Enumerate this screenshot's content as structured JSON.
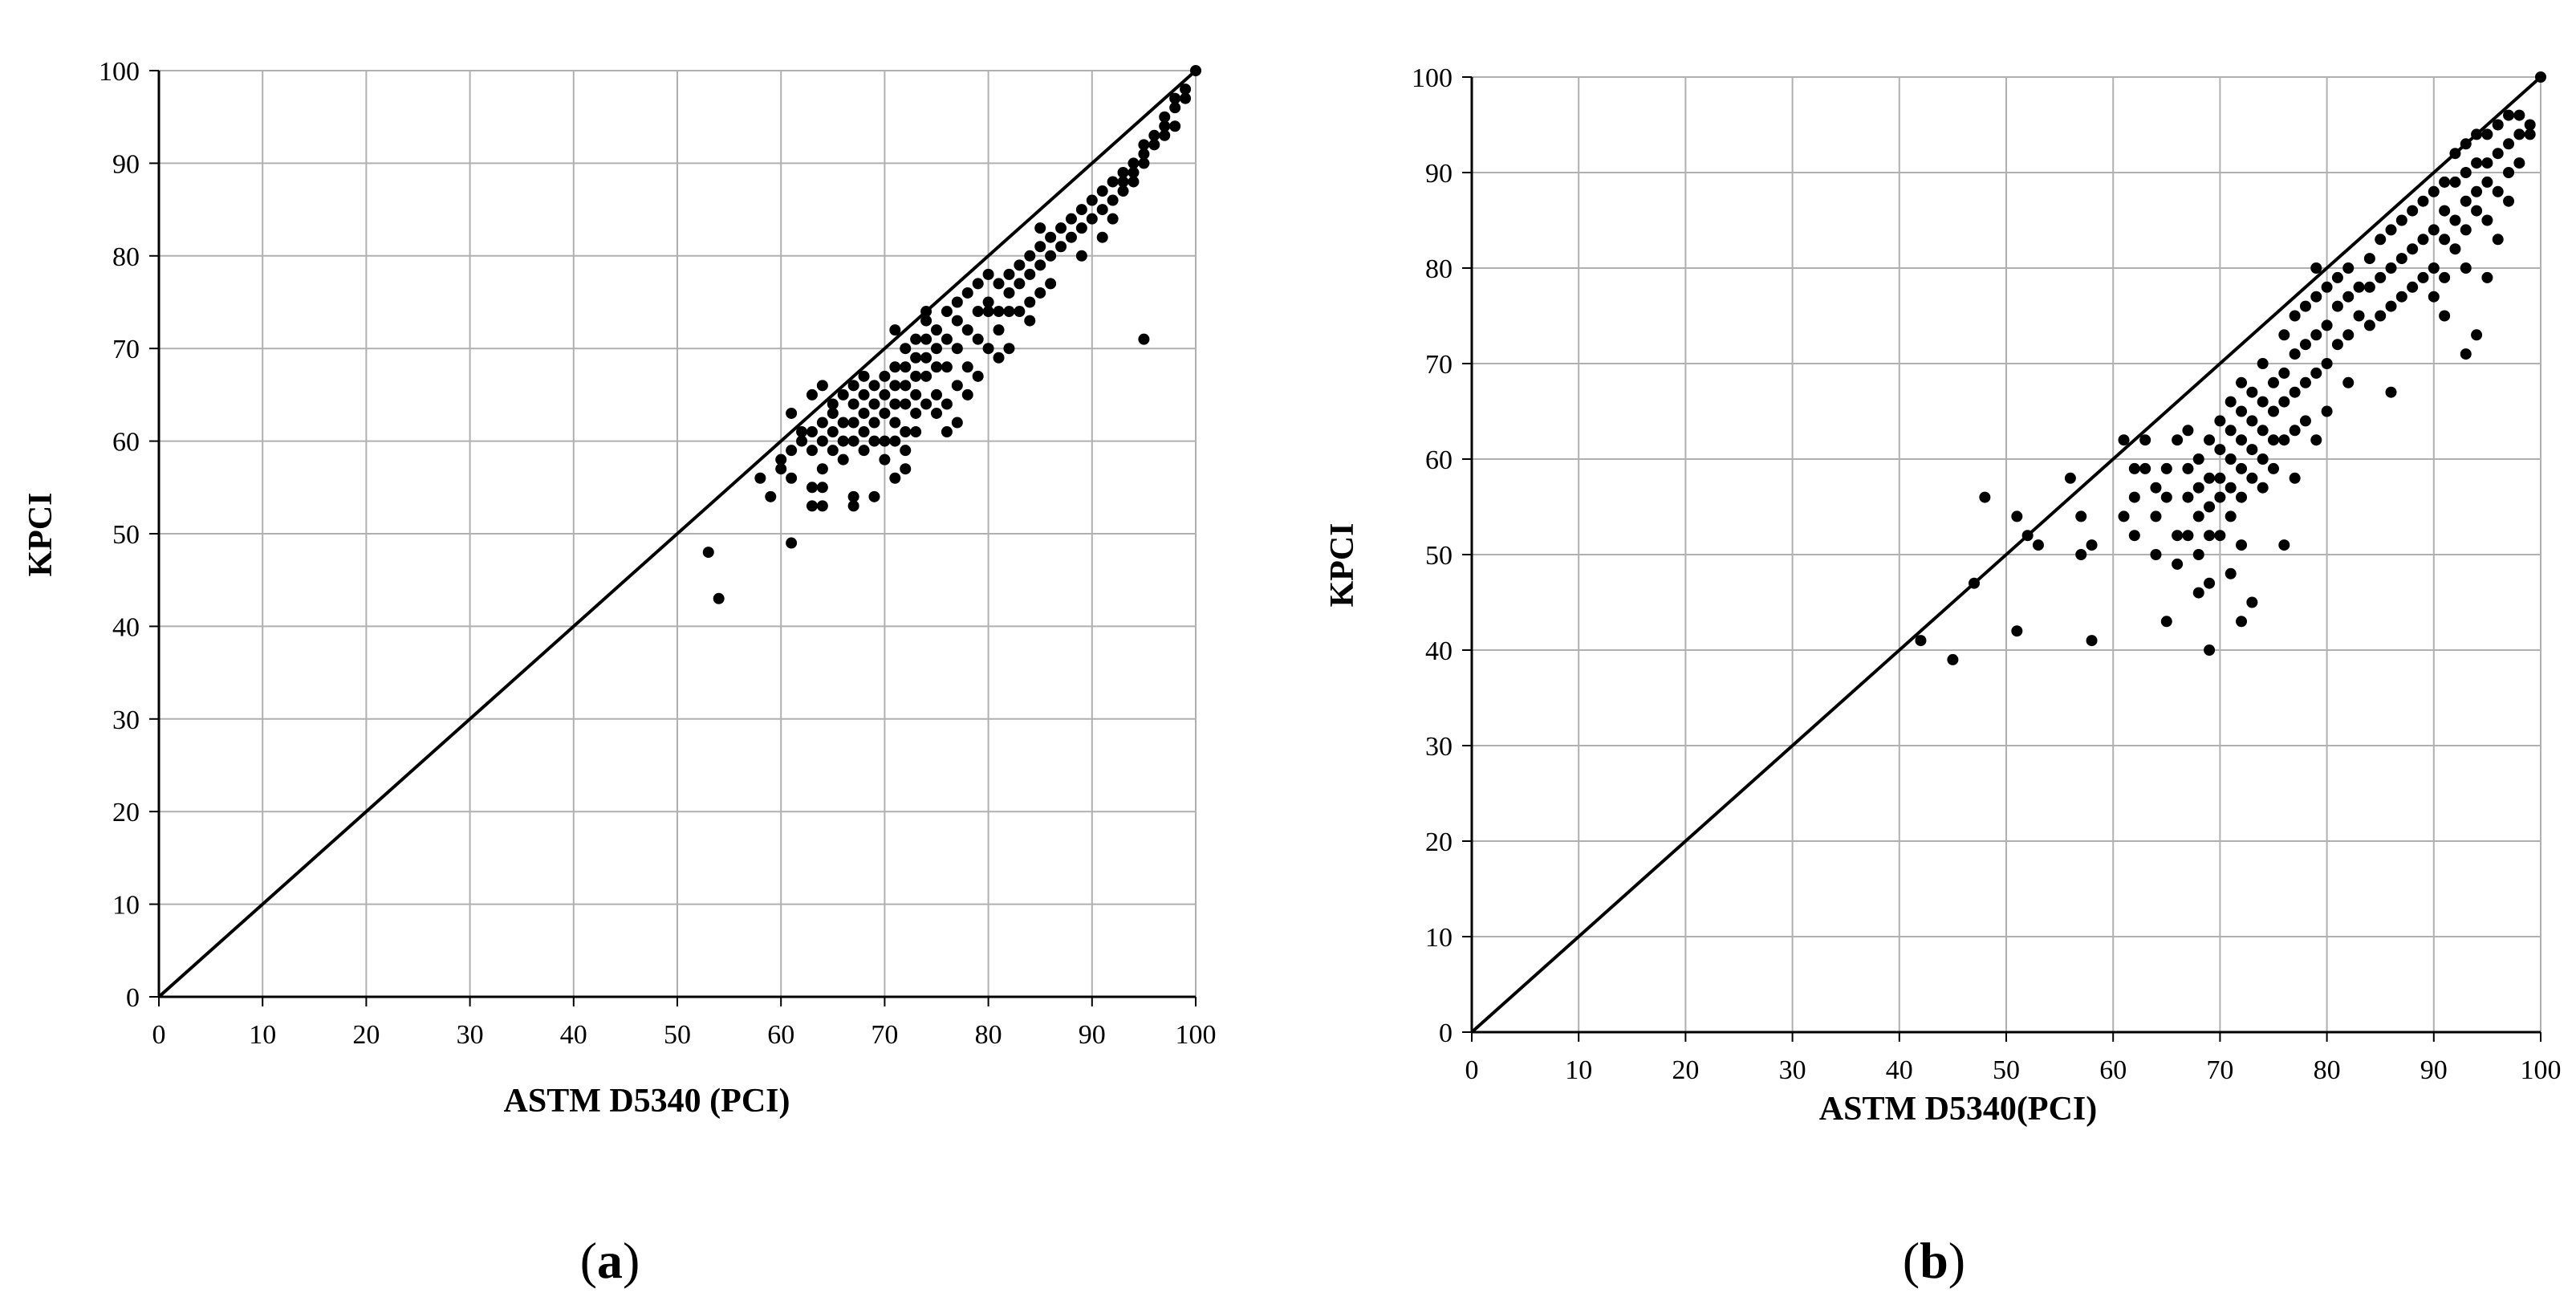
{
  "chart_data": [
    {
      "type": "scatter",
      "panel_label": "a",
      "xlabel": "ASTM D5340 (PCI)",
      "ylabel": "KPCI",
      "xlim": [
        0,
        100
      ],
      "ylim": [
        0,
        100
      ],
      "x_ticks": [
        "0",
        "10",
        "20",
        "30",
        "40",
        "50",
        "60",
        "70",
        "80",
        "90",
        "100"
      ],
      "y_ticks": [
        "0",
        "10",
        "20",
        "30",
        "40",
        "50",
        "60",
        "70",
        "80",
        "90",
        "100"
      ],
      "grid": true,
      "reference_line": {
        "from": [
          0,
          0
        ],
        "to": [
          100,
          100
        ]
      },
      "point_color": "#000000",
      "line_color": "#000000",
      "grid_color": "#b0b0b0",
      "points": [
        [
          53,
          48
        ],
        [
          54,
          43
        ],
        [
          58,
          56
        ],
        [
          59,
          54
        ],
        [
          60,
          58
        ],
        [
          60,
          57
        ],
        [
          61,
          56
        ],
        [
          61,
          49
        ],
        [
          61,
          59
        ],
        [
          61,
          63
        ],
        [
          62,
          60
        ],
        [
          62,
          61
        ],
        [
          63,
          61
        ],
        [
          63,
          55
        ],
        [
          63,
          53
        ],
        [
          63,
          59
        ],
        [
          63,
          65
        ],
        [
          64,
          60
        ],
        [
          64,
          62
        ],
        [
          64,
          57
        ],
        [
          64,
          66
        ],
        [
          64,
          53
        ],
        [
          64,
          55
        ],
        [
          65,
          61
        ],
        [
          65,
          63
        ],
        [
          65,
          59
        ],
        [
          65,
          64
        ],
        [
          66,
          62
        ],
        [
          66,
          65
        ],
        [
          66,
          60
        ],
        [
          66,
          58
        ],
        [
          67,
          64
        ],
        [
          67,
          66
        ],
        [
          67,
          62
        ],
        [
          67,
          60
        ],
        [
          67,
          54
        ],
        [
          67,
          53
        ],
        [
          68,
          65
        ],
        [
          68,
          63
        ],
        [
          68,
          67
        ],
        [
          68,
          61
        ],
        [
          68,
          59
        ],
        [
          69,
          66
        ],
        [
          69,
          64
        ],
        [
          69,
          60
        ],
        [
          69,
          54
        ],
        [
          69,
          62
        ],
        [
          70,
          67
        ],
        [
          70,
          65
        ],
        [
          70,
          63
        ],
        [
          70,
          60
        ],
        [
          70,
          58
        ],
        [
          71,
          68
        ],
        [
          71,
          66
        ],
        [
          71,
          64
        ],
        [
          71,
          62
        ],
        [
          71,
          60
        ],
        [
          71,
          56
        ],
        [
          71,
          72
        ],
        [
          72,
          70
        ],
        [
          72,
          68
        ],
        [
          72,
          66
        ],
        [
          72,
          64
        ],
        [
          72,
          61
        ],
        [
          72,
          59
        ],
        [
          72,
          57
        ],
        [
          73,
          71
        ],
        [
          73,
          69
        ],
        [
          73,
          67
        ],
        [
          73,
          65
        ],
        [
          73,
          63
        ],
        [
          73,
          61
        ],
        [
          74,
          73
        ],
        [
          74,
          71
        ],
        [
          74,
          69
        ],
        [
          74,
          67
        ],
        [
          74,
          64
        ],
        [
          74,
          74
        ],
        [
          75,
          72
        ],
        [
          75,
          70
        ],
        [
          75,
          68
        ],
        [
          75,
          65
        ],
        [
          75,
          63
        ],
        [
          76,
          74
        ],
        [
          76,
          71
        ],
        [
          76,
          68
        ],
        [
          76,
          64
        ],
        [
          76,
          61
        ],
        [
          77,
          75
        ],
        [
          77,
          73
        ],
        [
          77,
          70
        ],
        [
          77,
          66
        ],
        [
          77,
          62
        ],
        [
          78,
          76
        ],
        [
          78,
          72
        ],
        [
          78,
          68
        ],
        [
          78,
          65
        ],
        [
          79,
          77
        ],
        [
          79,
          74
        ],
        [
          79,
          71
        ],
        [
          79,
          67
        ],
        [
          80,
          78
        ],
        [
          80,
          74
        ],
        [
          80,
          70
        ],
        [
          80,
          75
        ],
        [
          81,
          77
        ],
        [
          81,
          74
        ],
        [
          81,
          72
        ],
        [
          81,
          69
        ],
        [
          82,
          78
        ],
        [
          82,
          76
        ],
        [
          82,
          74
        ],
        [
          82,
          70
        ],
        [
          83,
          79
        ],
        [
          83,
          77
        ],
        [
          83,
          74
        ],
        [
          84,
          80
        ],
        [
          84,
          78
        ],
        [
          84,
          75
        ],
        [
          84,
          73
        ],
        [
          85,
          81
        ],
        [
          85,
          79
        ],
        [
          85,
          76
        ],
        [
          85,
          83
        ],
        [
          86,
          82
        ],
        [
          86,
          80
        ],
        [
          86,
          77
        ],
        [
          87,
          83
        ],
        [
          87,
          81
        ],
        [
          88,
          84
        ],
        [
          88,
          82
        ],
        [
          89,
          85
        ],
        [
          89,
          83
        ],
        [
          89,
          80
        ],
        [
          90,
          86
        ],
        [
          90,
          84
        ],
        [
          91,
          87
        ],
        [
          91,
          85
        ],
        [
          91,
          82
        ],
        [
          92,
          88
        ],
        [
          92,
          86
        ],
        [
          92,
          84
        ],
        [
          93,
          89
        ],
        [
          93,
          88
        ],
        [
          93,
          87
        ],
        [
          94,
          90
        ],
        [
          94,
          89
        ],
        [
          94,
          88
        ],
        [
          95,
          92
        ],
        [
          95,
          91
        ],
        [
          95,
          90
        ],
        [
          95,
          71
        ],
        [
          96,
          93
        ],
        [
          96,
          92
        ],
        [
          97,
          95
        ],
        [
          97,
          94
        ],
        [
          97,
          93
        ],
        [
          98,
          97
        ],
        [
          98,
          96
        ],
        [
          98,
          94
        ],
        [
          99,
          98
        ],
        [
          99,
          97
        ],
        [
          100,
          100
        ]
      ]
    },
    {
      "type": "scatter",
      "panel_label": "b",
      "xlabel": "ASTM D5340(PCI)",
      "ylabel": "KPCI",
      "xlim": [
        0,
        100
      ],
      "ylim": [
        0,
        100
      ],
      "x_ticks": [
        "0",
        "10",
        "20",
        "30",
        "40",
        "50",
        "60",
        "70",
        "80",
        "90",
        "100"
      ],
      "y_ticks": [
        "0",
        "10",
        "20",
        "30",
        "40",
        "50",
        "60",
        "70",
        "80",
        "90",
        "100"
      ],
      "grid": true,
      "reference_line": {
        "from": [
          0,
          0
        ],
        "to": [
          100,
          100
        ]
      },
      "point_color": "#000000",
      "line_color": "#000000",
      "grid_color": "#b0b0b0",
      "points": [
        [
          42,
          41
        ],
        [
          45,
          39
        ],
        [
          47,
          47
        ],
        [
          48,
          56
        ],
        [
          51,
          54
        ],
        [
          51,
          42
        ],
        [
          52,
          52
        ],
        [
          53,
          51
        ],
        [
          56,
          58
        ],
        [
          57,
          54
        ],
        [
          57,
          50
        ],
        [
          58,
          51
        ],
        [
          58,
          41
        ],
        [
          61,
          62
        ],
        [
          61,
          54
        ],
        [
          62,
          56
        ],
        [
          62,
          52
        ],
        [
          62,
          59
        ],
        [
          63,
          62
        ],
        [
          63,
          59
        ],
        [
          64,
          57
        ],
        [
          64,
          54
        ],
        [
          64,
          50
        ],
        [
          65,
          43
        ],
        [
          65,
          59
        ],
        [
          65,
          56
        ],
        [
          66,
          52
        ],
        [
          66,
          49
        ],
        [
          66,
          62
        ],
        [
          67,
          63
        ],
        [
          67,
          59
        ],
        [
          67,
          56
        ],
        [
          67,
          52
        ],
        [
          68,
          60
        ],
        [
          68,
          57
        ],
        [
          68,
          54
        ],
        [
          68,
          50
        ],
        [
          68,
          46
        ],
        [
          69,
          62
        ],
        [
          69,
          58
        ],
        [
          69,
          55
        ],
        [
          69,
          52
        ],
        [
          69,
          47
        ],
        [
          69,
          40
        ],
        [
          70,
          64
        ],
        [
          70,
          61
        ],
        [
          70,
          58
        ],
        [
          70,
          56
        ],
        [
          70,
          52
        ],
        [
          71,
          66
        ],
        [
          71,
          63
        ],
        [
          71,
          60
        ],
        [
          71,
          57
        ],
        [
          71,
          54
        ],
        [
          71,
          48
        ],
        [
          72,
          68
        ],
        [
          72,
          65
        ],
        [
          72,
          62
        ],
        [
          72,
          59
        ],
        [
          72,
          56
        ],
        [
          72,
          51
        ],
        [
          72,
          43
        ],
        [
          73,
          67
        ],
        [
          73,
          64
        ],
        [
          73,
          61
        ],
        [
          73,
          58
        ],
        [
          73,
          45
        ],
        [
          74,
          70
        ],
        [
          74,
          66
        ],
        [
          74,
          63
        ],
        [
          74,
          60
        ],
        [
          74,
          57
        ],
        [
          75,
          68
        ],
        [
          75,
          65
        ],
        [
          75,
          62
        ],
        [
          75,
          59
        ],
        [
          76,
          73
        ],
        [
          76,
          69
        ],
        [
          76,
          66
        ],
        [
          76,
          62
        ],
        [
          76,
          51
        ],
        [
          77,
          75
        ],
        [
          77,
          71
        ],
        [
          77,
          67
        ],
        [
          77,
          63
        ],
        [
          77,
          58
        ],
        [
          78,
          76
        ],
        [
          78,
          72
        ],
        [
          78,
          68
        ],
        [
          78,
          64
        ],
        [
          79,
          80
        ],
        [
          79,
          77
        ],
        [
          79,
          73
        ],
        [
          79,
          69
        ],
        [
          79,
          62
        ],
        [
          80,
          78
        ],
        [
          80,
          74
        ],
        [
          80,
          70
        ],
        [
          80,
          65
        ],
        [
          81,
          79
        ],
        [
          81,
          76
        ],
        [
          81,
          72
        ],
        [
          82,
          80
        ],
        [
          82,
          77
        ],
        [
          82,
          73
        ],
        [
          82,
          68
        ],
        [
          83,
          78
        ],
        [
          83,
          75
        ],
        [
          84,
          81
        ],
        [
          84,
          78
        ],
        [
          84,
          74
        ],
        [
          85,
          83
        ],
        [
          85,
          79
        ],
        [
          85,
          75
        ],
        [
          86,
          84
        ],
        [
          86,
          80
        ],
        [
          86,
          76
        ],
        [
          86,
          67
        ],
        [
          87,
          85
        ],
        [
          87,
          81
        ],
        [
          87,
          77
        ],
        [
          88,
          86
        ],
        [
          88,
          82
        ],
        [
          88,
          78
        ],
        [
          89,
          87
        ],
        [
          89,
          83
        ],
        [
          89,
          79
        ],
        [
          90,
          88
        ],
        [
          90,
          84
        ],
        [
          90,
          80
        ],
        [
          90,
          77
        ],
        [
          91,
          89
        ],
        [
          91,
          86
        ],
        [
          91,
          83
        ],
        [
          91,
          79
        ],
        [
          91,
          75
        ],
        [
          92,
          92
        ],
        [
          92,
          89
        ],
        [
          92,
          85
        ],
        [
          92,
          82
        ],
        [
          93,
          93
        ],
        [
          93,
          90
        ],
        [
          93,
          87
        ],
        [
          93,
          84
        ],
        [
          93,
          80
        ],
        [
          93,
          71
        ],
        [
          94,
          94
        ],
        [
          94,
          91
        ],
        [
          94,
          88
        ],
        [
          94,
          86
        ],
        [
          94,
          73
        ],
        [
          95,
          94
        ],
        [
          95,
          91
        ],
        [
          95,
          89
        ],
        [
          95,
          85
        ],
        [
          95,
          79
        ],
        [
          96,
          95
        ],
        [
          96,
          92
        ],
        [
          96,
          88
        ],
        [
          96,
          83
        ],
        [
          97,
          96
        ],
        [
          97,
          93
        ],
        [
          97,
          90
        ],
        [
          97,
          87
        ],
        [
          98,
          96
        ],
        [
          98,
          94
        ],
        [
          98,
          91
        ],
        [
          99,
          95
        ],
        [
          99,
          94
        ],
        [
          100,
          100
        ]
      ]
    }
  ]
}
